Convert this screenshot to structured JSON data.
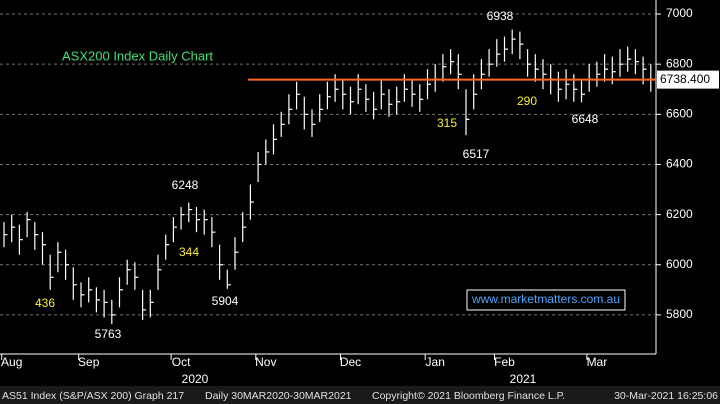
{
  "chart_data": {
    "type": "ohlc",
    "title": "ASX200 Index Daily Chart",
    "categories": [
      null,
      "Aug",
      null,
      null,
      null,
      null,
      null,
      null,
      null,
      null,
      null,
      "Sep",
      null,
      null,
      null,
      null,
      null,
      null,
      null,
      null,
      null,
      null,
      null,
      "Oct",
      null,
      null,
      null,
      null,
      null,
      null,
      null,
      null,
      null,
      null,
      "Nov",
      null,
      null,
      null,
      null,
      null,
      null,
      null,
      null,
      null,
      null,
      "Dec",
      null,
      null,
      null,
      null,
      null,
      null,
      null,
      null,
      null,
      null,
      "Jan",
      null,
      null,
      null,
      null,
      null,
      null,
      null,
      null,
      "Feb",
      null,
      null,
      null,
      null,
      null,
      null,
      null,
      null,
      null,
      null,
      null,
      "Mar",
      null,
      null,
      null,
      null,
      null,
      null,
      null
    ],
    "years": [
      "2020",
      "2021"
    ],
    "high": [
      6170,
      6200,
      6160,
      6210,
      6170,
      6130,
      6040,
      6090,
      6060,
      5990,
      5930,
      5950,
      5910,
      5900,
      5860,
      5950,
      6020,
      6010,
      5900,
      5900,
      6040,
      6120,
      6190,
      6230,
      6248,
      6230,
      6220,
      6190,
      6080,
      5980,
      6110,
      6210,
      6320,
      6450,
      6500,
      6560,
      6610,
      6680,
      6730,
      6670,
      6620,
      6680,
      6730,
      6760,
      6740,
      6710,
      6760,
      6720,
      6690,
      6740,
      6700,
      6710,
      6760,
      6740,
      6720,
      6780,
      6800,
      6840,
      6860,
      6840,
      6700,
      6760,
      6820,
      6860,
      6900,
      6910,
      6938,
      6930,
      6860,
      6840,
      6820,
      6800,
      6770,
      6780,
      6760,
      6740,
      6800,
      6810,
      6840,
      6830,
      6860,
      6870,
      6860,
      6830,
      6800
    ],
    "low": [
      6070,
      6090,
      6040,
      6110,
      6060,
      6000,
      5900,
      5970,
      5940,
      5860,
      5830,
      5850,
      5810,
      5790,
      5763,
      5830,
      5920,
      5900,
      5780,
      5790,
      5900,
      6020,
      6090,
      6140,
      6170,
      6130,
      6120,
      6070,
      5940,
      5904,
      5980,
      6090,
      6180,
      6330,
      6400,
      6440,
      6510,
      6560,
      6620,
      6540,
      6510,
      6570,
      6620,
      6650,
      6620,
      6600,
      6640,
      6610,
      6580,
      6620,
      6590,
      6600,
      6650,
      6630,
      6610,
      6660,
      6690,
      6730,
      6760,
      6700,
      6517,
      6620,
      6700,
      6750,
      6790,
      6810,
      6840,
      6820,
      6750,
      6730,
      6700,
      6680,
      6650,
      6660,
      6650,
      6648,
      6690,
      6710,
      6730,
      6720,
      6750,
      6770,
      6760,
      6720,
      6690
    ],
    "close": [
      6120,
      6150,
      6100,
      6180,
      6120,
      6080,
      5950,
      6050,
      6000,
      5920,
      5880,
      5900,
      5860,
      5850,
      5800,
      5900,
      5980,
      5950,
      5820,
      5850,
      5980,
      6080,
      6150,
      6200,
      6220,
      6180,
      6180,
      6130,
      6000,
      5920,
      6050,
      6150,
      6250,
      6400,
      6450,
      6500,
      6560,
      6620,
      6680,
      6600,
      6560,
      6620,
      6670,
      6700,
      6680,
      6650,
      6700,
      6660,
      6620,
      6680,
      6640,
      6650,
      6700,
      6680,
      6660,
      6720,
      6740,
      6790,
      6810,
      6760,
      6580,
      6680,
      6760,
      6800,
      6840,
      6860,
      6900,
      6880,
      6800,
      6780,
      6760,
      6740,
      6700,
      6720,
      6700,
      6680,
      6740,
      6760,
      6780,
      6770,
      6800,
      6820,
      6810,
      6780,
      6740
    ],
    "color": "#ffffff",
    "ylim": [
      5644,
      7056
    ],
    "yticks": [
      5800,
      6000,
      6200,
      6400,
      6600,
      6800,
      7000
    ],
    "grid": true,
    "reference_line": {
      "value": 6738.4,
      "label": "6738.400",
      "color": "#ff6a1a"
    },
    "annotations": [
      "6938",
      "6248",
      "5763",
      "5904",
      "6517",
      "6648",
      "436",
      "344",
      "315",
      "290"
    ],
    "watermark": "www.marketmatters.com.au",
    "footer": [
      "AS51 Index (S&P/ASX 200) Graph 217",
      "Daily 30MAR2020-30MAR2021",
      "Copyright© 2021 Bloomberg Finance L.P.",
      "30-Mar-2021 16:25:06"
    ]
  }
}
